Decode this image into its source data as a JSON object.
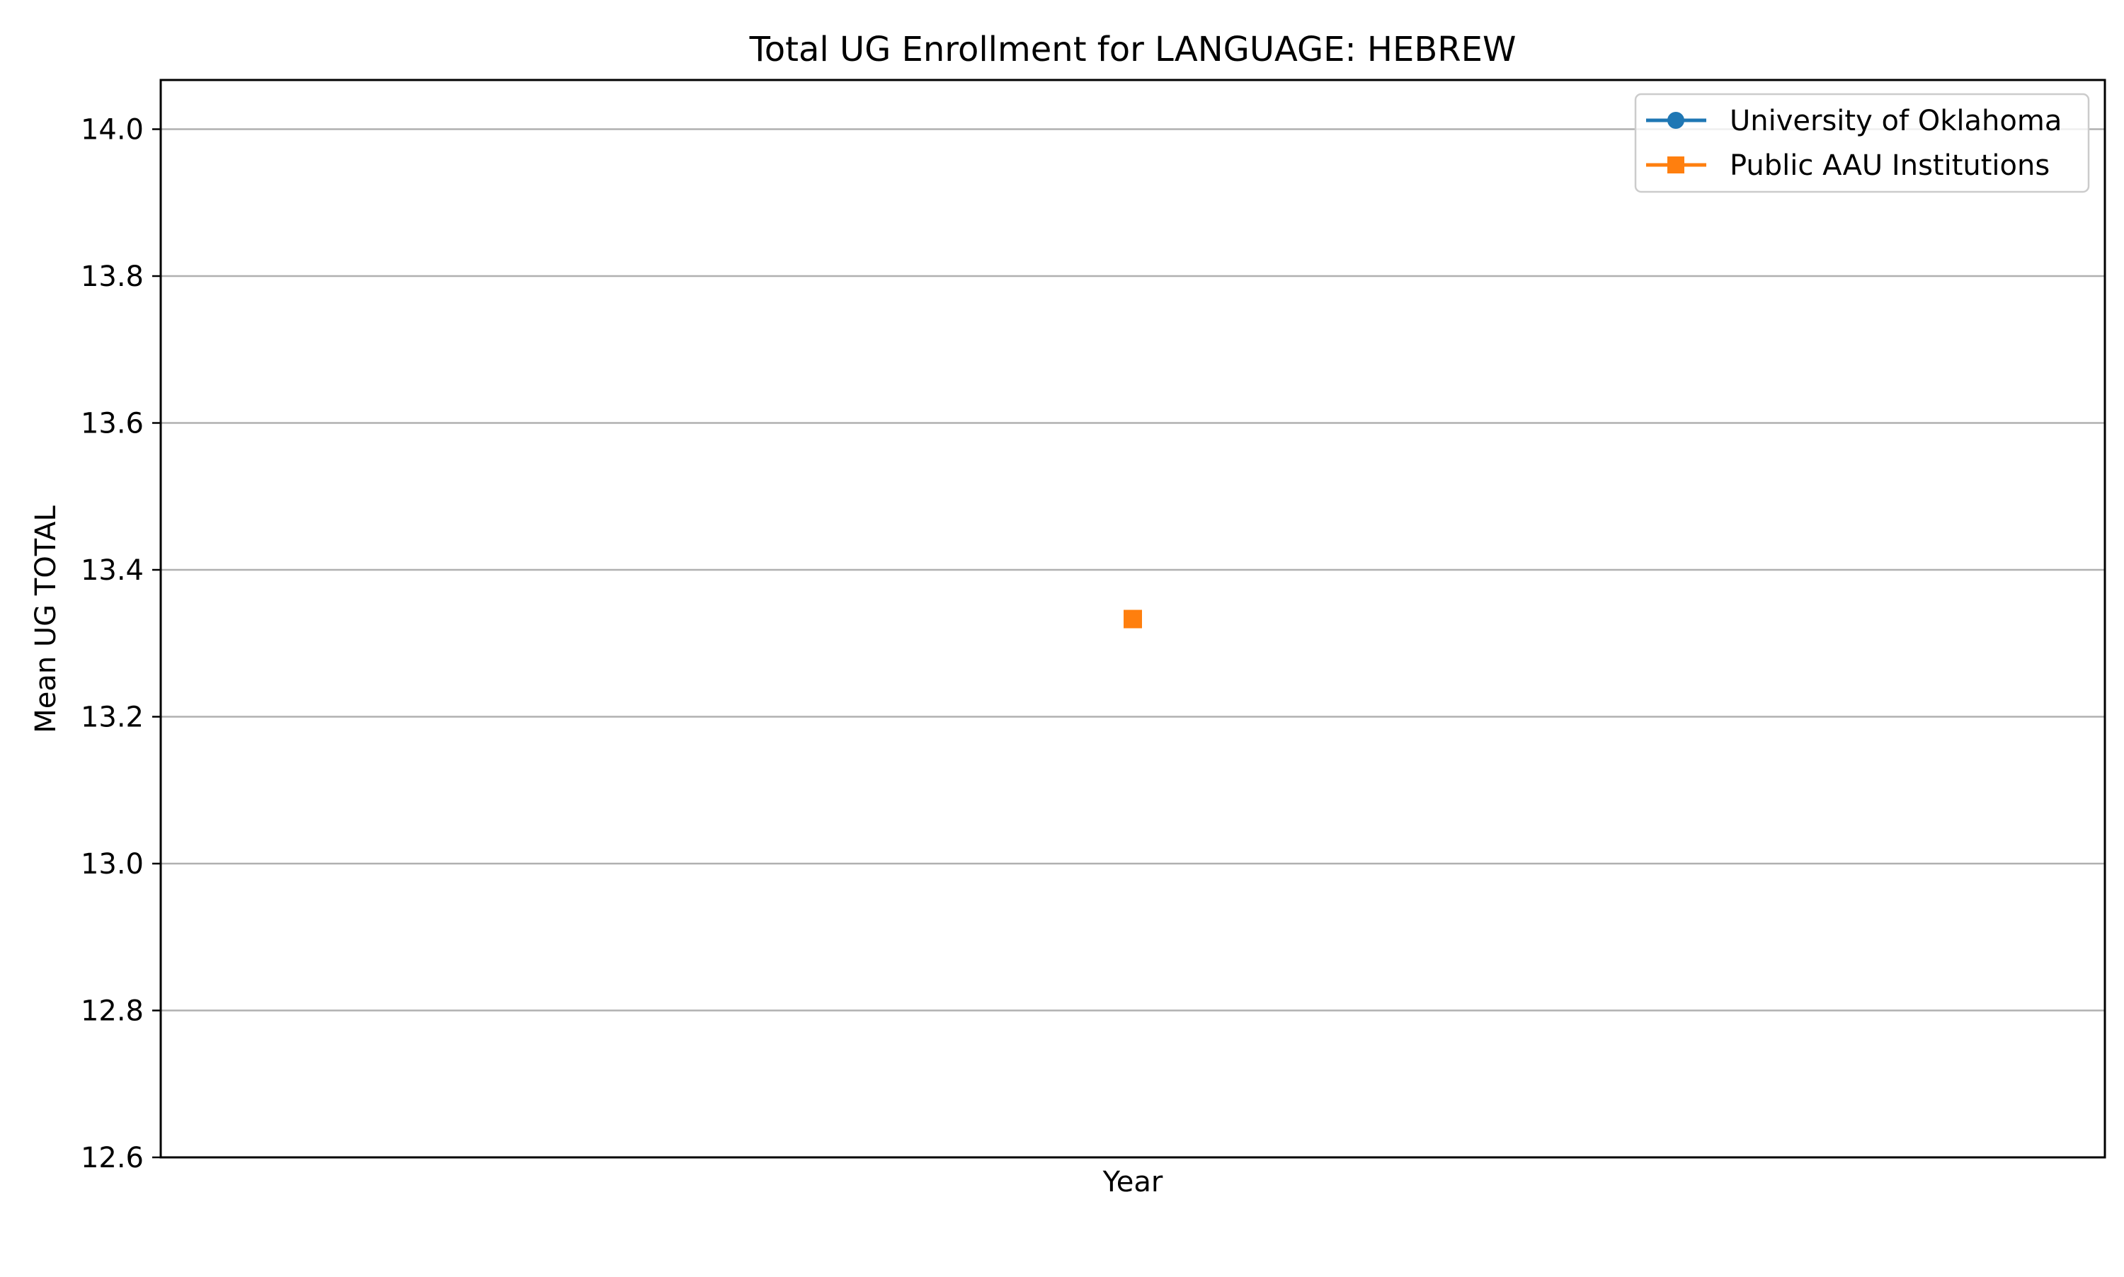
{
  "chart_data": {
    "type": "line",
    "title": "Total UG Enrollment for LANGUAGE: HEBREW",
    "xlabel": "Year",
    "ylabel": "Mean UG TOTAL",
    "ylim": [
      12.6,
      14.067
    ],
    "yticks": [
      12.6,
      12.8,
      13.0,
      13.2,
      13.4,
      13.6,
      13.8,
      14.0
    ],
    "ytick_labels": [
      "12.6",
      "12.8",
      "13.0",
      "13.2",
      "13.4",
      "13.6",
      "13.8",
      "14.0"
    ],
    "x_categories": [],
    "grid": {
      "y": true,
      "x": false
    },
    "legend_position": "top-right",
    "series": [
      {
        "name": "University of Oklahoma",
        "color": "#1f77b4",
        "marker": "circle",
        "values": []
      },
      {
        "name": "Public AAU Institutions",
        "color": "#ff7f0e",
        "marker": "square",
        "values": [
          13.333
        ]
      }
    ]
  }
}
